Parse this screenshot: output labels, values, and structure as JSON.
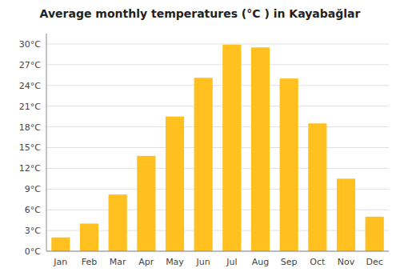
{
  "chart_data": {
    "type": "bar",
    "title": "Average monthly temperatures (°C ) in Kayabağlar",
    "categories": [
      "Jan",
      "Feb",
      "Mar",
      "Apr",
      "May",
      "Jun",
      "Jul",
      "Aug",
      "Sep",
      "Oct",
      "Nov",
      "Dec"
    ],
    "values": [
      2.0,
      4.0,
      8.2,
      13.8,
      19.5,
      25.1,
      29.9,
      29.5,
      25.0,
      18.5,
      10.5,
      5.0
    ],
    "color": "#FFC020",
    "ylim": [
      0,
      31.5
    ],
    "yticks": [
      {
        "value": 0,
        "label": "0°C"
      },
      {
        "value": 3,
        "label": "3°C"
      },
      {
        "value": 6,
        "label": "6°C"
      },
      {
        "value": 9,
        "label": "9°C"
      },
      {
        "value": 12,
        "label": "12°C"
      },
      {
        "value": 15,
        "label": "15°C"
      },
      {
        "value": 18,
        "label": "18°C"
      },
      {
        "value": 21,
        "label": "21°C"
      },
      {
        "value": 24,
        "label": "24°C"
      },
      {
        "value": 27,
        "label": "27°C"
      },
      {
        "value": 30,
        "label": "30°C"
      }
    ],
    "grid": true
  }
}
